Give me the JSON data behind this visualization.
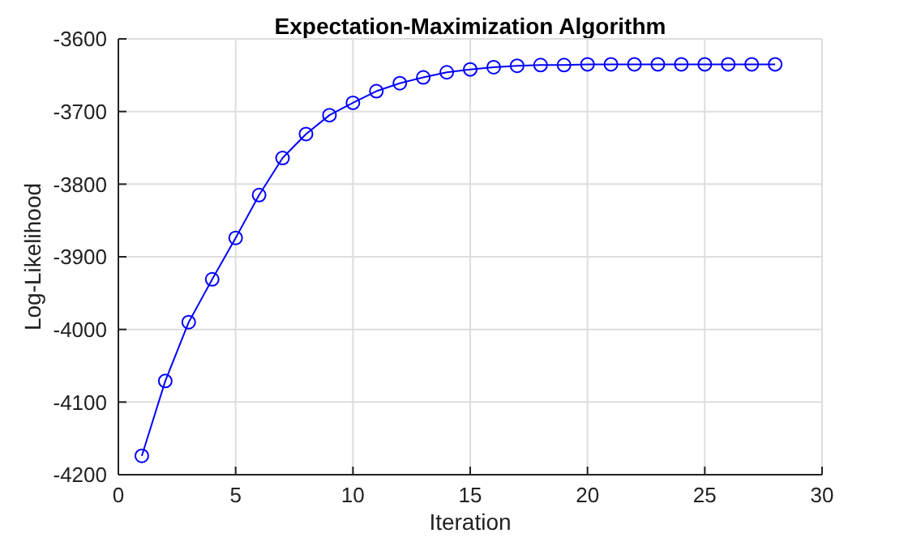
{
  "chart_data": {
    "type": "line",
    "title": "Expectation-Maximization Algorithm",
    "xlabel": "Iteration",
    "ylabel": "Log-Likelihood",
    "x": [
      1,
      2,
      3,
      4,
      5,
      6,
      7,
      8,
      9,
      10,
      11,
      12,
      13,
      14,
      15,
      16,
      17,
      18,
      19,
      20,
      21,
      22,
      23,
      24,
      25,
      26,
      27,
      28
    ],
    "series": [
      {
        "color": "#0000ff",
        "values": [
          -4174,
          -4071,
          -3990,
          -3931,
          -3874,
          -3815,
          -3764,
          -3731,
          -3705,
          -3688,
          -3672,
          -3661,
          -3653,
          -3646,
          -3642,
          -3639,
          -3637,
          -3636,
          -3636,
          -3635,
          -3635,
          -3635,
          -3635,
          -3635,
          -3635,
          -3635,
          -3635,
          -3635
        ]
      }
    ],
    "xlim": [
      0,
      30
    ],
    "xticks": [
      0,
      5,
      10,
      15,
      20,
      25,
      30
    ],
    "ylim": [
      -4200,
      -3600
    ],
    "yticks": [
      -4200,
      -4100,
      -4000,
      -3900,
      -3800,
      -3700,
      -3600
    ],
    "grid": true,
    "marker": "circle",
    "line_style": "solid"
  }
}
